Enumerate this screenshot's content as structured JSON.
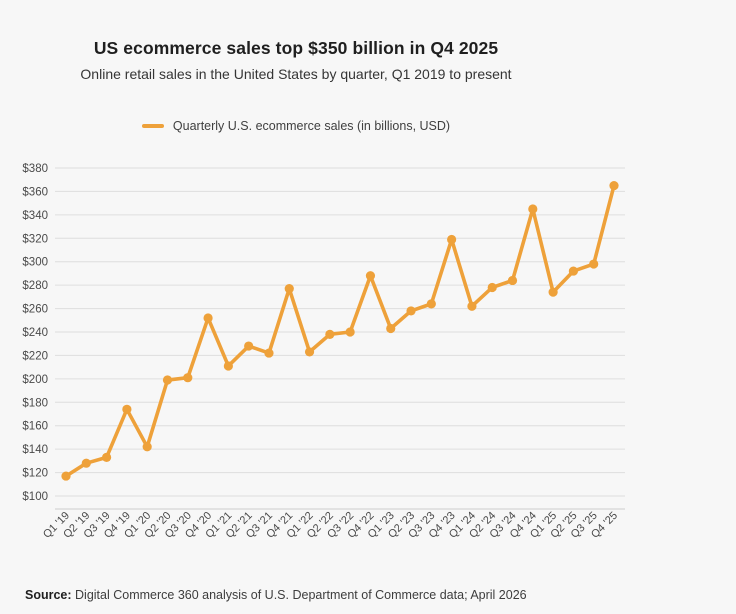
{
  "title": "US ecommerce sales top $350 billion in Q4 2025",
  "subtitle": "Online retail sales in the United States by quarter, Q1 2019 to present",
  "legend": {
    "label": "Quarterly U.S. ecommerce sales (in billions, USD)",
    "color": "#EEA13A"
  },
  "source": {
    "label": "Source:",
    "text": " Digital Commerce 360 analysis of U.S. Department of Commerce data; April 2026"
  },
  "colors": {
    "accent": "#EEA13A",
    "background": "#F7F7F7",
    "gridline": "#DEDEDE",
    "axis_line": "#CCCCCC"
  },
  "chart_data": {
    "type": "line",
    "title": "US ecommerce sales top $350 billion in Q4 2025",
    "subtitle": "Online retail sales in the United States by quarter, Q1 2019 to present",
    "xlabel": "",
    "ylabel": "",
    "legend_position": "top",
    "grid": true,
    "ylim": [
      100,
      380
    ],
    "ytick_step": 20,
    "ytick_prefix": "$",
    "line_color": "#EEA13A",
    "marker": "circle",
    "categories": [
      "Q1 '19",
      "Q2 '19",
      "Q3 '19",
      "Q4 '19",
      "Q1 '20",
      "Q2 '20",
      "Q3 '20",
      "Q4 '20",
      "Q1 '21",
      "Q2 '21",
      "Q3 '21",
      "Q4 '21",
      "Q1 '22",
      "Q2 '22",
      "Q3 '22",
      "Q4 '22",
      "Q1 '23",
      "Q2 '23",
      "Q3 '23",
      "Q4 '23",
      "Q1 '24",
      "Q2 '24",
      "Q3 '24",
      "Q4 '24",
      "Q1 '25",
      "Q2 '25",
      "Q3 '25",
      "Q4 '25"
    ],
    "series": [
      {
        "name": "Quarterly U.S. ecommerce sales (in billions, USD)",
        "values": [
          117,
          128,
          133,
          174,
          142,
          199,
          201,
          252,
          211,
          228,
          222,
          277,
          223,
          238,
          240,
          288,
          243,
          258,
          264,
          319,
          262,
          278,
          284,
          345,
          274,
          292,
          298,
          365
        ]
      }
    ]
  }
}
